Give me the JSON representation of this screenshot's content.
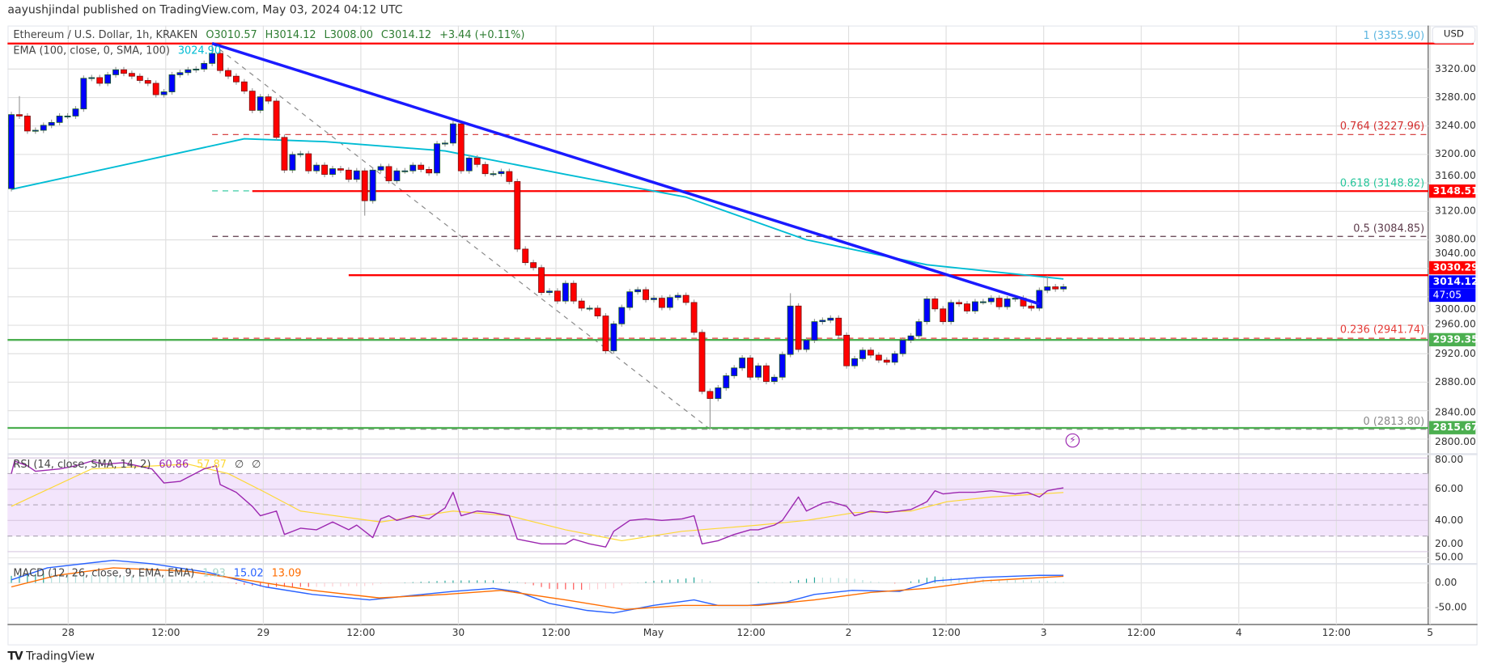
{
  "header": {
    "published": "aayushjindal published on TradingView.com, May 03, 2024 04:12 UTC"
  },
  "legend": {
    "symbol": "Ethereum / U.S. Dollar, 1h, KRAKEN",
    "open": "O3010.57",
    "high": "H3014.12",
    "low": "L3008.00",
    "close": "C3014.12",
    "change": "+3.44 (+0.11%)",
    "ema_label": "EMA (100, close, 0, SMA, 100)",
    "ema_value": "3024.90",
    "rsi_label": "RSI (14, close, SMA, 14, 2)",
    "rsi_value": "60.86",
    "rsi_sma": "57.87",
    "rsi_null1": "∅",
    "rsi_null2": "∅",
    "macd_label": "MACD (12, 26, close, 9, EMA, EMA)",
    "macd_hist": "1.93",
    "macd_value": "15.02",
    "macd_signal": "13.09"
  },
  "axis": {
    "currency": "USD",
    "price_ticks": [
      "3320.00",
      "3280.00",
      "3240.00",
      "3200.00",
      "3160.00",
      "3120.00",
      "3080.00",
      "3040.00",
      "3000.00",
      "2960.00",
      "2920.00",
      "2880.00",
      "2840.00",
      "2800.00"
    ],
    "rsi_ticks": [
      "80.00",
      "60.00",
      "40.00",
      "20.00"
    ],
    "macd_ticks": [
      "50.00",
      "0.00",
      "-50.00"
    ],
    "time_ticks": [
      "28",
      "12:00",
      "29",
      "12:00",
      "30",
      "12:00",
      "May",
      "12:00",
      "2",
      "12:00",
      "3",
      "12:00",
      "4",
      "12:00",
      "5"
    ]
  },
  "badges": {
    "r1": "3148.51",
    "r2": "3030.29",
    "last": "3014.12",
    "countdown": "47:05",
    "s1": "2939.35",
    "s2": "2815.67"
  },
  "fib": [
    {
      "label": "1 (3355.90)",
      "level": 3355.9,
      "color": "#5bb5e0"
    },
    {
      "label": "0.764 (3227.96)",
      "level": 3227.96,
      "color": "#d32f2f"
    },
    {
      "label": "0.618 (3148.82)",
      "level": 3148.82,
      "color": "#26c69b"
    },
    {
      "label": "0.5 (3084.85)",
      "level": 3084.85,
      "color": "#5d3a4a"
    },
    {
      "label": "0.236 (2941.74)",
      "level": 2941.74,
      "color": "#e53935"
    },
    {
      "label": "0 (2813.80)",
      "level": 2813.8,
      "color": "#888888"
    }
  ],
  "footer": {
    "brand": "TradingView",
    "logo_mark": "TV"
  },
  "colors": {
    "up": "#0000ff",
    "down": "#ff0000",
    "ema": "#00bcd4",
    "trend": "#1a1aff",
    "resistance": "#ff0000",
    "support": "#4caf50",
    "rsi": "#9c27b0",
    "rsi_sma": "#fdd835",
    "macd": "#2962ff",
    "signal": "#ff6d00"
  },
  "chart_data": {
    "type": "candlestick",
    "title": "Ethereum / U.S. Dollar, 1h, KRAKEN",
    "ylim": [
      2790,
      3370
    ],
    "first_open": 3152,
    "closes": [
      3256,
      3254,
      3233,
      3234,
      3241,
      3245,
      3254,
      3254,
      3264,
      3307,
      3308,
      3300,
      3312,
      3319,
      3314,
      3310,
      3304,
      3300,
      3284,
      3288,
      3312,
      3315,
      3319,
      3320,
      3328,
      3342,
      3318,
      3310,
      3302,
      3289,
      3262,
      3281,
      3275,
      3224,
      3178,
      3200,
      3201,
      3177,
      3185,
      3172,
      3180,
      3178,
      3165,
      3177,
      3135,
      3178,
      3183,
      3163,
      3177,
      3177,
      3185,
      3179,
      3174,
      3215,
      3216,
      3243,
      3177,
      3195,
      3186,
      3173,
      3173,
      3176,
      3162,
      3067,
      3048,
      3041,
      3006,
      3008,
      2994,
      3019,
      2994,
      2984,
      2984,
      2973,
      2924,
      2962,
      2985,
      3007,
      3010,
      2996,
      2998,
      2985,
      2999,
      3002,
      2992,
      2950,
      2867,
      2857,
      2872,
      2889,
      2900,
      2914,
      2887,
      2903,
      2881,
      2887,
      2919,
      2987,
      2926,
      2939,
      2965,
      2967,
      2970,
      2946,
      2903,
      2913,
      2925,
      2918,
      2911,
      2908,
      2920,
      2939,
      2945,
      2965,
      2997,
      2983,
      2965,
      2992,
      2990,
      2980,
      2993,
      2993,
      2998,
      2986,
      2997,
      2998,
      2987,
      2984,
      3009,
      3014,
      3011,
      3014.12
    ],
    "wick_overrides": {
      "2": {
        "h": 3282
      },
      "26": {
        "h": 3355.9
      },
      "45": {
        "l": 3114
      },
      "56": {
        "h": 3250
      },
      "88": {
        "l": 2813.8
      },
      "98": {
        "h": 3005
      },
      "130": {
        "h": 3030
      }
    },
    "ema100": [
      [
        1,
        3151
      ],
      [
        30,
        3222
      ],
      [
        40,
        3218
      ],
      [
        55,
        3205
      ],
      [
        70,
        3172
      ],
      [
        85,
        3140
      ],
      [
        100,
        3080
      ],
      [
        115,
        3045
      ],
      [
        132,
        3025
      ]
    ],
    "trendline": [
      [
        26,
        3356
      ],
      [
        129,
        2990
      ]
    ],
    "fib_diagonal": [
      [
        26,
        3355.9
      ],
      [
        88,
        2813.8
      ]
    ],
    "horizontal_levels": [
      {
        "price": 3355.9,
        "kind": "resistance",
        "from": 1
      },
      {
        "price": 3148.51,
        "kind": "resistance",
        "from": 31
      },
      {
        "price": 3030.29,
        "kind": "resistance",
        "from": 43
      },
      {
        "price": 2939.35,
        "kind": "support",
        "from": 1
      },
      {
        "price": 2815.67,
        "kind": "support",
        "from": 1
      }
    ],
    "rsi": [
      [
        1,
        70
      ],
      [
        1.4,
        78
      ],
      [
        3,
        75
      ],
      [
        4,
        71.5
      ],
      [
        7,
        73
      ],
      [
        9,
        75
      ],
      [
        11,
        78
      ],
      [
        12.5,
        76
      ],
      [
        15,
        77
      ],
      [
        16.7,
        75
      ],
      [
        18.5,
        73
      ],
      [
        20,
        64
      ],
      [
        22,
        65
      ],
      [
        25,
        73
      ],
      [
        26.5,
        75
      ],
      [
        27,
        63
      ],
      [
        29,
        58
      ],
      [
        31,
        49
      ],
      [
        32,
        43
      ],
      [
        34,
        46
      ],
      [
        35,
        31
      ],
      [
        36,
        33
      ],
      [
        37,
        35
      ],
      [
        39,
        34
      ],
      [
        41,
        39
      ],
      [
        43,
        34
      ],
      [
        44,
        37
      ],
      [
        46,
        29
      ],
      [
        47,
        41
      ],
      [
        48,
        43
      ],
      [
        49,
        40
      ],
      [
        51,
        43
      ],
      [
        53,
        41
      ],
      [
        55,
        48
      ],
      [
        56,
        58
      ],
      [
        57,
        43
      ],
      [
        59,
        46
      ],
      [
        61,
        45
      ],
      [
        63,
        43
      ],
      [
        64,
        28
      ],
      [
        67,
        25
      ],
      [
        70,
        25
      ],
      [
        71,
        28
      ],
      [
        73,
        25
      ],
      [
        75,
        23
      ],
      [
        76,
        33
      ],
      [
        78,
        40
      ],
      [
        80,
        41
      ],
      [
        82,
        40
      ],
      [
        84.5,
        41
      ],
      [
        86,
        43
      ],
      [
        87,
        25
      ],
      [
        89,
        27
      ],
      [
        91,
        31
      ],
      [
        93,
        34
      ],
      [
        94,
        34
      ],
      [
        96,
        37
      ],
      [
        97,
        40
      ],
      [
        99,
        55
      ],
      [
        100,
        46
      ],
      [
        102,
        51
      ],
      [
        103,
        52
      ],
      [
        105,
        49
      ],
      [
        106,
        43
      ],
      [
        108,
        46
      ],
      [
        110,
        45
      ],
      [
        113,
        47
      ],
      [
        115,
        52
      ],
      [
        116,
        59
      ],
      [
        117,
        57
      ],
      [
        119,
        58
      ],
      [
        121,
        58
      ],
      [
        123,
        59
      ],
      [
        126,
        57
      ],
      [
        127.5,
        58
      ],
      [
        129,
        55
      ],
      [
        130,
        59
      ],
      [
        131,
        60
      ],
      [
        132,
        60.86
      ]
    ],
    "rsi_sma": [
      [
        1,
        49
      ],
      [
        11,
        73
      ],
      [
        23,
        76
      ],
      [
        28,
        70
      ],
      [
        32.6,
        58
      ],
      [
        37,
        46
      ],
      [
        47,
        39
      ],
      [
        56,
        46
      ],
      [
        63,
        43
      ],
      [
        70,
        34
      ],
      [
        77,
        27
      ],
      [
        84.5,
        33
      ],
      [
        94,
        37
      ],
      [
        100,
        40
      ],
      [
        106,
        45
      ],
      [
        113,
        46
      ],
      [
        117.5,
        52
      ],
      [
        123,
        55
      ],
      [
        132,
        57.87
      ]
    ],
    "rsi_band": [
      30,
      70
    ],
    "macd": [
      [
        1,
        6
      ],
      [
        5.5,
        30
      ],
      [
        13.7,
        45
      ],
      [
        18.5,
        38
      ],
      [
        25.5,
        21
      ],
      [
        32.6,
        -8
      ],
      [
        38.5,
        -23
      ],
      [
        45.6,
        -34
      ],
      [
        50.3,
        -26
      ],
      [
        56,
        -17
      ],
      [
        61,
        -11
      ],
      [
        63.9,
        -17
      ],
      [
        68,
        -41
      ],
      [
        72.7,
        -55
      ],
      [
        76,
        -60
      ],
      [
        80.9,
        -45
      ],
      [
        86,
        -34
      ],
      [
        89,
        -45
      ],
      [
        92.7,
        -45
      ],
      [
        97.5,
        -38
      ],
      [
        101,
        -23
      ],
      [
        105.7,
        -15
      ],
      [
        111.6,
        -17
      ],
      [
        116,
        4
      ],
      [
        122,
        11
      ],
      [
        129,
        15
      ],
      [
        132,
        15.02
      ]
    ],
    "signal": [
      [
        1,
        -8
      ],
      [
        6.7,
        15
      ],
      [
        13.7,
        30
      ],
      [
        23,
        23
      ],
      [
        31,
        4
      ],
      [
        38.5,
        -15
      ],
      [
        46.8,
        -30
      ],
      [
        55,
        -23
      ],
      [
        62,
        -15
      ],
      [
        70,
        -34
      ],
      [
        77.4,
        -53
      ],
      [
        84.5,
        -45
      ],
      [
        94,
        -45
      ],
      [
        101,
        -34
      ],
      [
        108,
        -19
      ],
      [
        115,
        -11
      ],
      [
        122,
        4
      ],
      [
        132,
        13.09
      ]
    ]
  }
}
